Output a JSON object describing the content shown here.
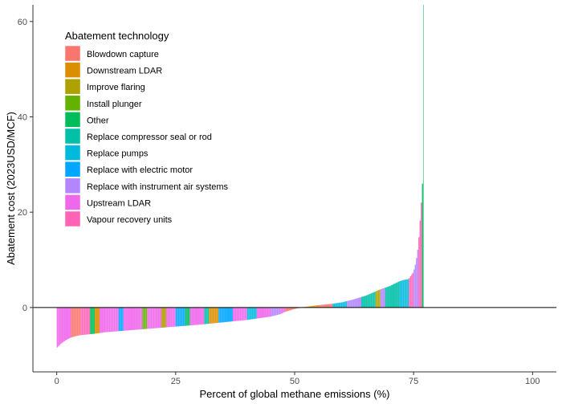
{
  "chart_data": {
    "type": "bar",
    "title": "",
    "xlabel": "Percent of global methane emissions (%)",
    "ylabel": "Abatement cost (2023USD/MCF)",
    "xlim": [
      -5,
      105
    ],
    "ylim": [
      -13.5,
      63.5
    ],
    "x_ticks": [
      0,
      25,
      50,
      75,
      100
    ],
    "y_ticks": [
      0,
      20,
      40,
      60
    ],
    "grid": false,
    "zero_line": true,
    "legend": {
      "title": "Abatement technology",
      "position": "top-left",
      "entries": [
        {
          "name": "Blowdown capture",
          "color": "#F8766D"
        },
        {
          "name": "Downstream LDAR",
          "color": "#DB8E00"
        },
        {
          "name": "Improve flaring",
          "color": "#AEA200"
        },
        {
          "name": "Install plunger",
          "color": "#64B200"
        },
        {
          "name": "Other",
          "color": "#00BD5C"
        },
        {
          "name": "Replace compressor seal or rod",
          "color": "#00C1A7"
        },
        {
          "name": "Replace pumps",
          "color": "#00BADE"
        },
        {
          "name": "Replace with electric motor",
          "color": "#00A6FF"
        },
        {
          "name": "Replace with instrument air systems",
          "color": "#B385FF"
        },
        {
          "name": "Upstream LDAR",
          "color": "#EF67EB"
        },
        {
          "name": "Vapour recovery units",
          "color": "#FF63B6"
        }
      ]
    },
    "curve_points": {
      "description_free": true,
      "x": [
        0,
        0.5,
        1,
        2,
        3,
        4,
        5,
        8,
        10,
        15,
        20,
        25,
        30,
        35,
        40,
        45,
        47,
        48,
        50,
        52,
        55,
        58,
        60,
        62,
        65,
        68,
        70,
        72,
        73,
        74,
        75,
        75.5,
        76,
        76.5,
        77,
        77.1
      ],
      "y": [
        -8.5,
        -8.0,
        -7.5,
        -6.8,
        -6.3,
        -6.0,
        -5.8,
        -5.5,
        -5.2,
        -4.8,
        -4.4,
        -4.0,
        -3.6,
        -3.1,
        -2.6,
        -1.9,
        -1.4,
        -0.9,
        -0.3,
        0.1,
        0.5,
        0.8,
        1.1,
        1.6,
        2.5,
        3.8,
        4.5,
        5.5,
        5.8,
        6.0,
        7.5,
        9.5,
        13.0,
        20.0,
        28.0,
        63.5
      ]
    },
    "segments": [
      {
        "x0": 0,
        "x1": 3,
        "series": "Upstream LDAR"
      },
      {
        "x0": 3,
        "x1": 5,
        "series": "Blowdown capture"
      },
      {
        "x0": 5,
        "x1": 7,
        "series": "Vapour recovery units"
      },
      {
        "x0": 7,
        "x1": 8,
        "series": "Other"
      },
      {
        "x0": 8,
        "x1": 9,
        "series": "Downstream LDAR"
      },
      {
        "x0": 9,
        "x1": 13,
        "series": "Upstream LDAR"
      },
      {
        "x0": 13,
        "x1": 14,
        "series": "Replace with electric motor"
      },
      {
        "x0": 14,
        "x1": 18,
        "series": "Upstream LDAR"
      },
      {
        "x0": 18,
        "x1": 19,
        "series": "Install plunger"
      },
      {
        "x0": 19,
        "x1": 22,
        "series": "Upstream LDAR"
      },
      {
        "x0": 22,
        "x1": 23,
        "series": "Improve flaring"
      },
      {
        "x0": 23,
        "x1": 25,
        "series": "Upstream LDAR"
      },
      {
        "x0": 25,
        "x1": 27,
        "series": "Replace with electric motor"
      },
      {
        "x0": 27,
        "x1": 28,
        "series": "Other"
      },
      {
        "x0": 28,
        "x1": 31,
        "series": "Upstream LDAR"
      },
      {
        "x0": 31,
        "x1": 32,
        "series": "Replace compressor seal or rod"
      },
      {
        "x0": 32,
        "x1": 34,
        "series": "Downstream LDAR"
      },
      {
        "x0": 34,
        "x1": 37,
        "series": "Replace with electric motor"
      },
      {
        "x0": 37,
        "x1": 40,
        "series": "Upstream LDAR"
      },
      {
        "x0": 40,
        "x1": 42,
        "series": "Replace pumps"
      },
      {
        "x0": 42,
        "x1": 45,
        "series": "Upstream LDAR"
      },
      {
        "x0": 45,
        "x1": 47,
        "series": "Replace with instrument air systems"
      },
      {
        "x0": 47,
        "x1": 48,
        "series": "Upstream LDAR"
      },
      {
        "x0": 48,
        "x1": 52,
        "series": "Blowdown capture"
      },
      {
        "x0": 52,
        "x1": 55,
        "series": "Downstream LDAR"
      },
      {
        "x0": 55,
        "x1": 58,
        "series": "Blowdown capture"
      },
      {
        "x0": 58,
        "x1": 61,
        "series": "Replace pumps"
      },
      {
        "x0": 61,
        "x1": 64,
        "series": "Replace with instrument air systems"
      },
      {
        "x0": 64,
        "x1": 67,
        "series": "Replace compressor seal or rod"
      },
      {
        "x0": 67,
        "x1": 68,
        "series": "Improve flaring"
      },
      {
        "x0": 68,
        "x1": 69,
        "series": "Replace with instrument air systems"
      },
      {
        "x0": 69,
        "x1": 72,
        "series": "Replace compressor seal or rod"
      },
      {
        "x0": 72,
        "x1": 74,
        "series": "Replace pumps"
      },
      {
        "x0": 74,
        "x1": 75,
        "series": "Vapour recovery units"
      },
      {
        "x0": 75,
        "x1": 76,
        "series": "Replace with instrument air systems"
      },
      {
        "x0": 76,
        "x1": 76.8,
        "series": "Vapour recovery units"
      },
      {
        "x0": 76.8,
        "x1": 77.1,
        "series": "Other"
      }
    ]
  }
}
